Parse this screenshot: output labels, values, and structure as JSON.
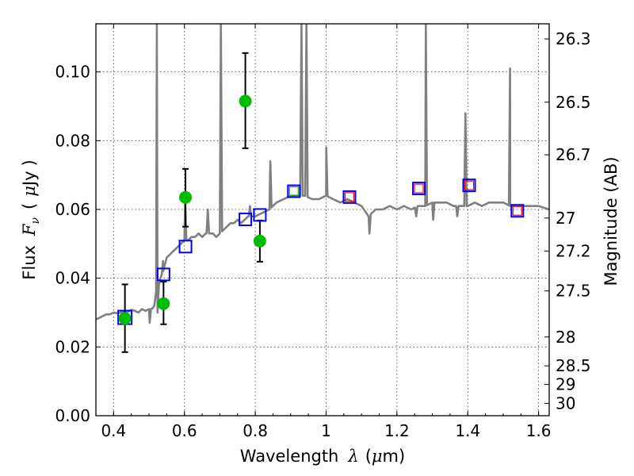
{
  "chart_data": {
    "type": "scatter",
    "xlabel_parts": [
      "Wavelength",
      "λ",
      "(",
      "μ",
      "m)"
    ],
    "ylabel_parts": [
      "Flux",
      "F",
      "ν",
      "(",
      "μ",
      "Jy",
      ")"
    ],
    "y2label": "Magnitude (AB)",
    "xlim": [
      0.35,
      1.63
    ],
    "ylim": [
      0.0,
      0.114
    ],
    "grid": true,
    "x_ticks": [
      0.4,
      0.6,
      0.8,
      1.0,
      1.2,
      1.4,
      1.6
    ],
    "x_tick_labels": [
      "0.4",
      "0.6",
      "0.8",
      "1",
      "1.2",
      "1.4",
      "1.6"
    ],
    "y_ticks": [
      0.0,
      0.02,
      0.04,
      0.06,
      0.08,
      0.1
    ],
    "y_tick_labels": [
      "0.00",
      "0.02",
      "0.04",
      "0.06",
      "0.08",
      "0.10"
    ],
    "mag_ticks": [
      {
        "label": "26.3",
        "flux": 0.1096
      },
      {
        "label": "26.5",
        "flux": 0.0912
      },
      {
        "label": "26.7",
        "flux": 0.0759
      },
      {
        "label": "27",
        "flux": 0.0575
      },
      {
        "label": "27.2",
        "flux": 0.0479
      },
      {
        "label": "27.5",
        "flux": 0.0363
      },
      {
        "label": "28",
        "flux": 0.0229
      },
      {
        "label": "28.5",
        "flux": 0.0145
      },
      {
        "label": "29",
        "flux": 0.0091
      },
      {
        "label": "30",
        "flux": 0.0036
      }
    ],
    "colors": {
      "model": "#808080",
      "observed": "#00bb00",
      "error_bar": "#000000",
      "model_box": "#0000ff",
      "inner_box_green": "#22aa22",
      "inner_box_red": "#ff0000"
    },
    "model_spectrum": {
      "x": [
        0.35,
        0.36,
        0.37,
        0.38,
        0.39,
        0.4,
        0.41,
        0.42,
        0.43,
        0.44,
        0.45,
        0.46,
        0.47,
        0.48,
        0.49,
        0.5,
        0.51,
        0.515,
        0.52,
        0.524,
        0.528,
        0.532,
        0.54,
        0.55,
        0.56,
        0.57,
        0.58,
        0.59,
        0.6,
        0.61,
        0.62,
        0.63,
        0.64,
        0.65,
        0.66,
        0.67,
        0.68,
        0.69,
        0.7,
        0.71,
        0.72,
        0.73,
        0.74,
        0.75,
        0.76,
        0.77,
        0.78,
        0.79,
        0.8,
        0.82,
        0.84,
        0.86,
        0.88,
        0.9,
        0.92,
        0.94,
        0.96,
        0.98,
        1.0,
        1.02,
        1.04,
        1.06,
        1.08,
        1.1,
        1.12,
        1.14,
        1.16,
        1.18,
        1.2,
        1.22,
        1.24,
        1.26,
        1.28,
        1.3,
        1.32,
        1.34,
        1.36,
        1.38,
        1.4,
        1.42,
        1.44,
        1.46,
        1.48,
        1.5,
        1.52,
        1.54,
        1.56,
        1.58,
        1.6,
        1.63
      ],
      "y": [
        0.028,
        0.0285,
        0.029,
        0.0295,
        0.0295,
        0.03,
        0.0298,
        0.03,
        0.0305,
        0.0302,
        0.0308,
        0.0305,
        0.03,
        0.031,
        0.0305,
        0.031,
        0.0312,
        0.032,
        0.036,
        0.03,
        0.038,
        0.04,
        0.042,
        0.046,
        0.047,
        0.048,
        0.049,
        0.05,
        0.051,
        0.051,
        0.052,
        0.052,
        0.053,
        0.052,
        0.053,
        0.053,
        0.053,
        0.052,
        0.053,
        0.054,
        0.055,
        0.056,
        0.056,
        0.057,
        0.056,
        0.057,
        0.058,
        0.058,
        0.058,
        0.059,
        0.06,
        0.062,
        0.063,
        0.064,
        0.064,
        0.064,
        0.063,
        0.063,
        0.064,
        0.063,
        0.062,
        0.063,
        0.062,
        0.061,
        0.058,
        0.06,
        0.06,
        0.061,
        0.06,
        0.061,
        0.06,
        0.061,
        0.061,
        0.062,
        0.062,
        0.062,
        0.061,
        0.061,
        0.061,
        0.062,
        0.061,
        0.062,
        0.062,
        0.062,
        0.061,
        0.061,
        0.061,
        0.061,
        0.061,
        0.06
      ]
    },
    "emission_lines": [
      {
        "x": 0.522,
        "peak": 0.114
      },
      {
        "x": 0.5395,
        "peak": 0.045
      },
      {
        "x": 0.545,
        "peak": 0.044
      },
      {
        "x": 0.602,
        "peak": 0.063
      },
      {
        "x": 0.666,
        "peak": 0.06
      },
      {
        "x": 0.703,
        "peak": 0.114
      },
      {
        "x": 0.785,
        "peak": 0.061
      },
      {
        "x": 0.8425,
        "peak": 0.074
      },
      {
        "x": 0.9305,
        "peak": 0.114
      },
      {
        "x": 0.9445,
        "peak": 0.114
      },
      {
        "x": 1.0005,
        "peak": 0.078
      },
      {
        "x": 1.2815,
        "peak": 0.114
      },
      {
        "x": 1.3935,
        "peak": 0.088
      },
      {
        "x": 1.5195,
        "peak": 0.101
      }
    ],
    "absorption_lines": [
      {
        "x": 0.502,
        "depth": 0.027
      },
      {
        "x": 1.1225,
        "depth": 0.053
      },
      {
        "x": 1.2545,
        "depth": 0.058
      },
      {
        "x": 1.3025,
        "depth": 0.057
      },
      {
        "x": 1.3705,
        "depth": 0.058
      }
    ],
    "observed": [
      {
        "x": 0.432,
        "y": 0.0283,
        "err_low": 0.0185,
        "err_high": 0.0382
      },
      {
        "x": 0.541,
        "y": 0.0326,
        "err_low": 0.0266,
        "err_high": 0.039
      },
      {
        "x": 0.603,
        "y": 0.0635,
        "err_low": 0.055,
        "err_high": 0.0718
      },
      {
        "x": 0.772,
        "y": 0.0915,
        "err_low": 0.0778,
        "err_high": 0.1055
      },
      {
        "x": 0.813,
        "y": 0.0508,
        "err_low": 0.0448,
        "err_high": 0.0568
      }
    ],
    "model_photometry": [
      {
        "x": 0.432,
        "y": 0.0286,
        "inner": "none",
        "large": true
      },
      {
        "x": 0.541,
        "y": 0.0411,
        "inner": "none"
      },
      {
        "x": 0.603,
        "y": 0.0492,
        "inner": "none"
      },
      {
        "x": 0.772,
        "y": 0.0571,
        "inner": "none"
      },
      {
        "x": 0.813,
        "y": 0.0584,
        "inner": "none"
      },
      {
        "x": 0.909,
        "y": 0.0653,
        "inner": "green"
      },
      {
        "x": 1.066,
        "y": 0.0636,
        "inner": "red"
      },
      {
        "x": 1.262,
        "y": 0.0661,
        "inner": "red"
      },
      {
        "x": 1.404,
        "y": 0.067,
        "inner": "red"
      },
      {
        "x": 1.54,
        "y": 0.0596,
        "inner": "red"
      }
    ]
  }
}
